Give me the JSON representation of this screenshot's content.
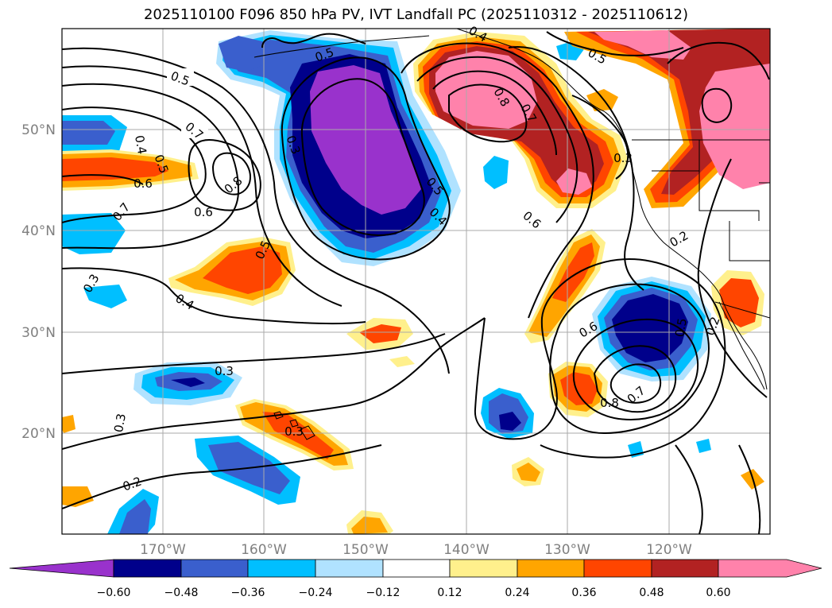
{
  "title": "2025110100 F096 850 hPa PV, IVT Landfall PC (2025110312 - 2025110612)",
  "map": {
    "lon_range": [
      -180,
      -110
    ],
    "lat_range": [
      10,
      60
    ],
    "lon_ticks": [
      "170°W",
      "160°W",
      "150°W",
      "140°W",
      "130°W",
      "120°W"
    ],
    "lat_ticks": [
      "50°N",
      "40°N",
      "30°N",
      "20°N"
    ]
  },
  "colorbar": {
    "levels": [
      "−0.60",
      "−0.48",
      "−0.36",
      "−0.24",
      "−0.12",
      "0.12",
      "0.24",
      "0.36",
      "0.48",
      "0.60"
    ],
    "colors": [
      "#9932cc",
      "#00008b",
      "#3a5fcd",
      "#00bfff",
      "#b0e2ff",
      "#ffffff",
      "#fff08c",
      "#ffa500",
      "#ff4500",
      "#b22222",
      "#ff82ab",
      "#ff82ab"
    ]
  },
  "contour_labels": [
    {
      "text": "0.5"
    },
    {
      "text": "0.7"
    },
    {
      "text": "0.8"
    },
    {
      "text": "0.6"
    },
    {
      "text": "0.6"
    },
    {
      "text": "0.4"
    },
    {
      "text": "0.5"
    },
    {
      "text": "0.7"
    },
    {
      "text": "0.3"
    },
    {
      "text": "0.5"
    },
    {
      "text": "0.4"
    },
    {
      "text": "0.3"
    },
    {
      "text": "0.3"
    },
    {
      "text": "0.2"
    },
    {
      "text": "0.3"
    },
    {
      "text": "0.5"
    },
    {
      "text": "0.4"
    },
    {
      "text": "0.5"
    },
    {
      "text": "0.4"
    },
    {
      "text": "0.8"
    },
    {
      "text": "0.7"
    },
    {
      "text": "0.6"
    },
    {
      "text": "0.5"
    },
    {
      "text": "0.3"
    },
    {
      "text": "0.2"
    },
    {
      "text": "0.6"
    },
    {
      "text": "0.8"
    },
    {
      "text": "0.7"
    },
    {
      "text": "0.5"
    },
    {
      "text": "0.2"
    },
    {
      "text": "0.3"
    }
  ]
}
